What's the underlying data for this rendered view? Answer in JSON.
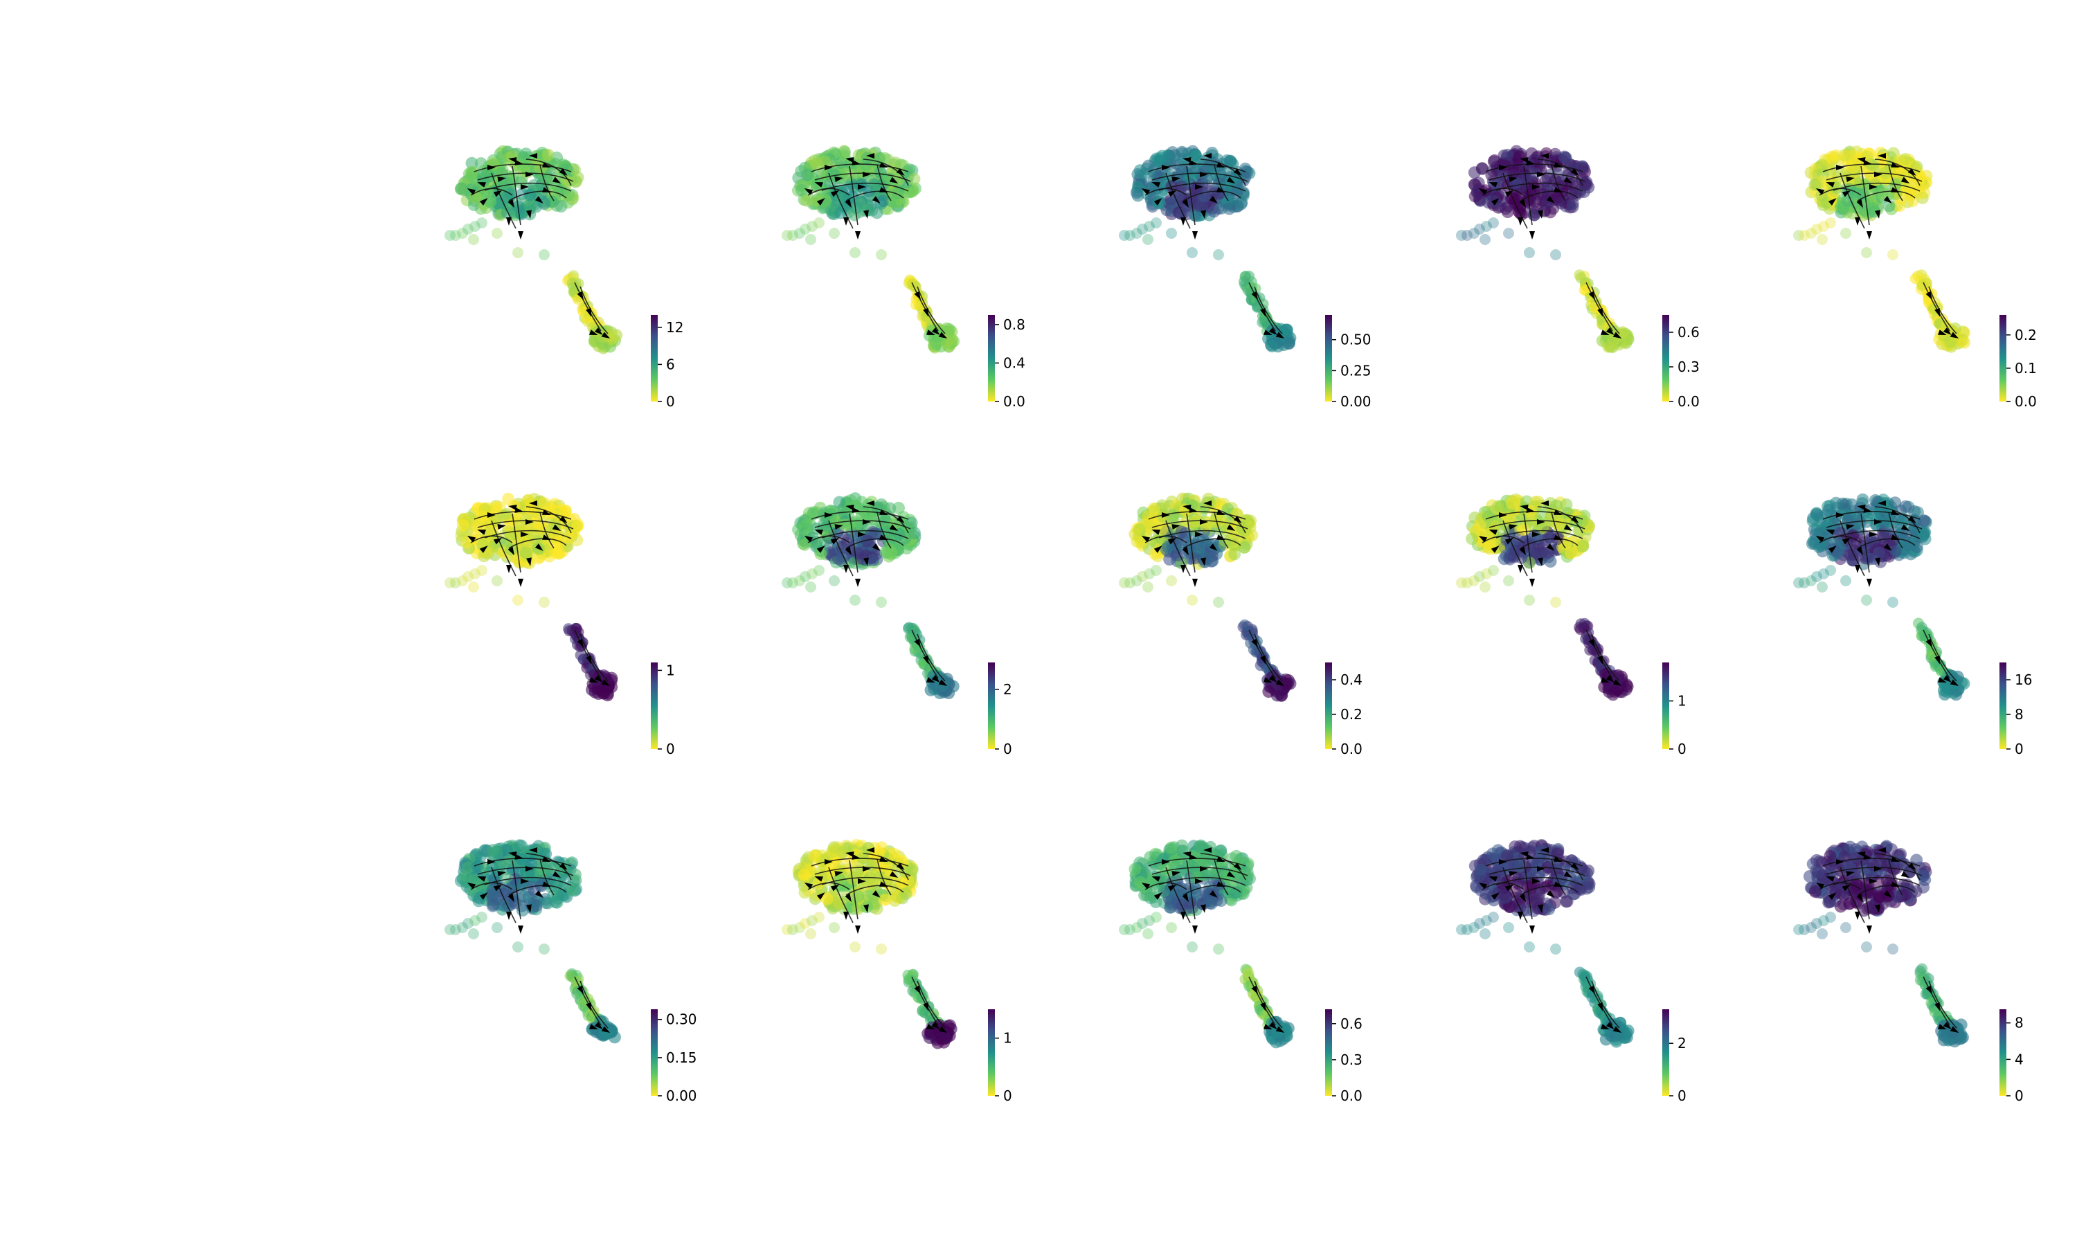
{
  "figure": {
    "rows": 3,
    "cols": 5,
    "colormap": "viridis_r",
    "colormap_stops": [
      "#fde725",
      "#5ec962",
      "#21918c",
      "#3b528b",
      "#440154"
    ],
    "arrow_color": "#000000",
    "stream_color": "#111111"
  },
  "chart_data": [
    {
      "type": "scatter",
      "title": "",
      "colorbar": {
        "ticks": [
          "0",
          "6",
          "12"
        ],
        "vmax": 14
      },
      "level": {
        "main": 0.25,
        "patch": 0.4,
        "tail": 0.05,
        "tip": 0.15
      }
    },
    {
      "type": "scatter",
      "title": "",
      "colorbar": {
        "ticks": [
          "0.0",
          "0.4",
          "0.8"
        ],
        "vmax": 0.9
      },
      "level": {
        "main": 0.25,
        "patch": 0.45,
        "tail": 0.05,
        "tip": 0.2
      }
    },
    {
      "type": "scatter",
      "title": "",
      "colorbar": {
        "ticks": [
          "0.00",
          "0.25",
          "0.50"
        ],
        "vmax": 0.7
      },
      "level": {
        "main": 0.6,
        "patch": 0.8,
        "tail": 0.35,
        "tip": 0.55
      }
    },
    {
      "type": "scatter",
      "title": "",
      "colorbar": {
        "ticks": [
          "0.0",
          "0.3",
          "0.6"
        ],
        "vmax": 0.75
      },
      "level": {
        "main": 0.9,
        "patch": 0.95,
        "tail": 0.05,
        "tip": 0.15
      }
    },
    {
      "type": "scatter",
      "title": "",
      "colorbar": {
        "ticks": [
          "0.0",
          "0.1",
          "0.2"
        ],
        "vmax": 0.26
      },
      "level": {
        "main": 0.05,
        "patch": 0.25,
        "tail": 0.02,
        "tip": 0.05
      }
    },
    {
      "type": "scatter",
      "title": "",
      "colorbar": {
        "ticks": [
          "0",
          "1"
        ],
        "vmax": 1.1
      },
      "level": {
        "main": 0.03,
        "patch": 0.1,
        "tail": 0.9,
        "tip": 0.98
      }
    },
    {
      "type": "scatter",
      "title": "",
      "colorbar": {
        "ticks": [
          "0",
          "2"
        ],
        "vmax": 2.9
      },
      "level": {
        "main": 0.3,
        "patch": 0.75,
        "tail": 0.35,
        "tip": 0.6
      }
    },
    {
      "type": "scatter",
      "title": "",
      "colorbar": {
        "ticks": [
          "0.0",
          "0.2",
          "0.4"
        ],
        "vmax": 0.5
      },
      "level": {
        "main": 0.1,
        "patch": 0.7,
        "tail": 0.75,
        "tip": 0.95
      }
    },
    {
      "type": "scatter",
      "title": "",
      "colorbar": {
        "ticks": [
          "0",
          "1"
        ],
        "vmax": 1.8
      },
      "level": {
        "main": 0.1,
        "patch": 0.8,
        "tail": 0.9,
        "tip": 0.98
      }
    },
    {
      "type": "scatter",
      "title": "",
      "colorbar": {
        "ticks": [
          "0",
          "8",
          "16"
        ],
        "vmax": 20
      },
      "level": {
        "main": 0.6,
        "patch": 0.85,
        "tail": 0.3,
        "tip": 0.55
      }
    },
    {
      "type": "scatter",
      "title": "",
      "colorbar": {
        "ticks": [
          "0.00",
          "0.15",
          "0.30"
        ],
        "vmax": 0.34
      },
      "level": {
        "main": 0.45,
        "patch": 0.65,
        "tail": 0.25,
        "tip": 0.55
      }
    },
    {
      "type": "scatter",
      "title": "",
      "colorbar": {
        "ticks": [
          "0",
          "1"
        ],
        "vmax": 1.5
      },
      "level": {
        "main": 0.05,
        "patch": 0.15,
        "tail": 0.3,
        "tip": 0.97
      }
    },
    {
      "type": "scatter",
      "title": "",
      "colorbar": {
        "ticks": [
          "0.0",
          "0.3",
          "0.6"
        ],
        "vmax": 0.72
      },
      "level": {
        "main": 0.35,
        "patch": 0.7,
        "tail": 0.2,
        "tip": 0.55
      }
    },
    {
      "type": "scatter",
      "title": "",
      "colorbar": {
        "ticks": [
          "0",
          "2"
        ],
        "vmax": 3.3
      },
      "level": {
        "main": 0.8,
        "patch": 0.9,
        "tail": 0.45,
        "tip": 0.55
      }
    },
    {
      "type": "scatter",
      "title": "",
      "colorbar": {
        "ticks": [
          "0",
          "4",
          "8"
        ],
        "vmax": 9.5
      },
      "level": {
        "main": 0.85,
        "patch": 0.95,
        "tail": 0.35,
        "tip": 0.6
      }
    }
  ]
}
